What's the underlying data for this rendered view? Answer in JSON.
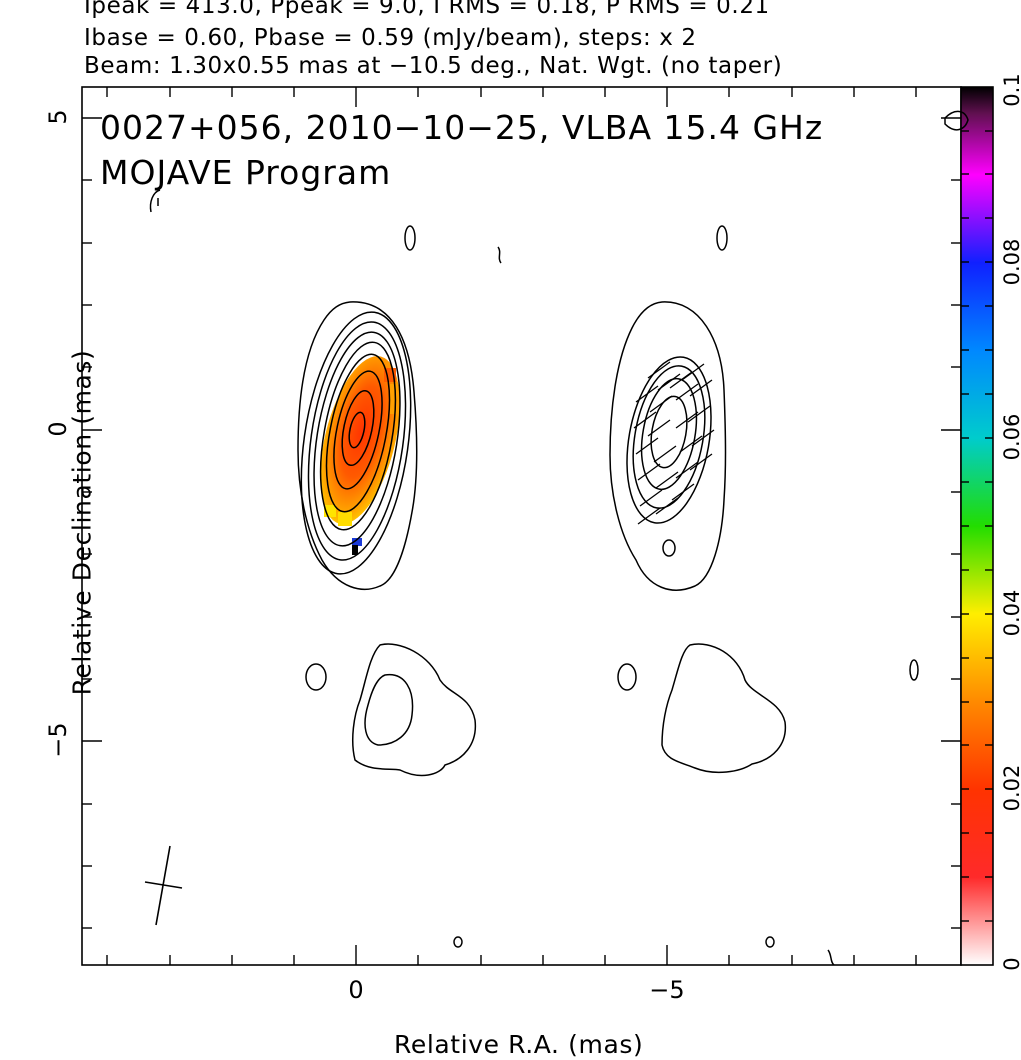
{
  "header": {
    "line1": "Ipeak = 413.0, Ppeak = 9.0, I RMS = 0.18, P RMS = 0.21",
    "line2": "Ibase = 0.60, Pbase = 0.59 (mJy/beam), steps: x 2",
    "line3": "Beam: 1.30x0.55 mas at −10.5 deg., Nat. Wgt. (no taper)"
  },
  "plot": {
    "title_line1": "0027+056, 2010−10−25, VLBA 15.4 GHz",
    "title_line2": "MOJAVE Program",
    "xlabel": "Relative R.A. (mas)",
    "ylabel": "Relative Declination (mas)"
  },
  "chart_data": {
    "type": "heatmap",
    "title": "0027+056, 2010−10−25, VLBA 15.4 GHz",
    "subtitle": "MOJAVE Program",
    "xlabel": "Relative R.A. (mas)",
    "ylabel": "Relative Declination (mas)",
    "xlim": [
      4.2,
      -9.8
    ],
    "ylim": [
      -8.6,
      5.4
    ],
    "x_ticks": [
      {
        "value": 0,
        "label": "0"
      },
      {
        "value": -5,
        "label": "−5"
      }
    ],
    "y_ticks": [
      {
        "value": 5,
        "label": "5"
      },
      {
        "value": 0,
        "label": "0"
      },
      {
        "value": -5,
        "label": "−5"
      }
    ],
    "colorbar": {
      "range": [
        0,
        0.1
      ],
      "ticks": [
        {
          "value": 0,
          "label": "0"
        },
        {
          "value": 0.02,
          "label": "0.02"
        },
        {
          "value": 0.04,
          "label": "0.04"
        },
        {
          "value": 0.06,
          "label": "0.06"
        },
        {
          "value": 0.08,
          "label": "0.08"
        },
        {
          "value": 0.1,
          "label": "0.1"
        }
      ]
    },
    "peak_intensity_mJy_per_beam": 413.0,
    "peak_polarized_mJy_per_beam": 9.0,
    "total_intensity_rms": 0.18,
    "polarized_rms": 0.21,
    "total_intensity_base_contour": 0.6,
    "polarized_base_contour": 0.59,
    "contour_step_factor": 2,
    "beam": {
      "major_mas": 1.3,
      "minor_mas": 0.55,
      "pa_deg": -10.5,
      "weighting": "Nat. Wgt. (no taper)"
    },
    "panels": [
      "left",
      "right"
    ],
    "grid": false,
    "legend": "colorbar right"
  }
}
